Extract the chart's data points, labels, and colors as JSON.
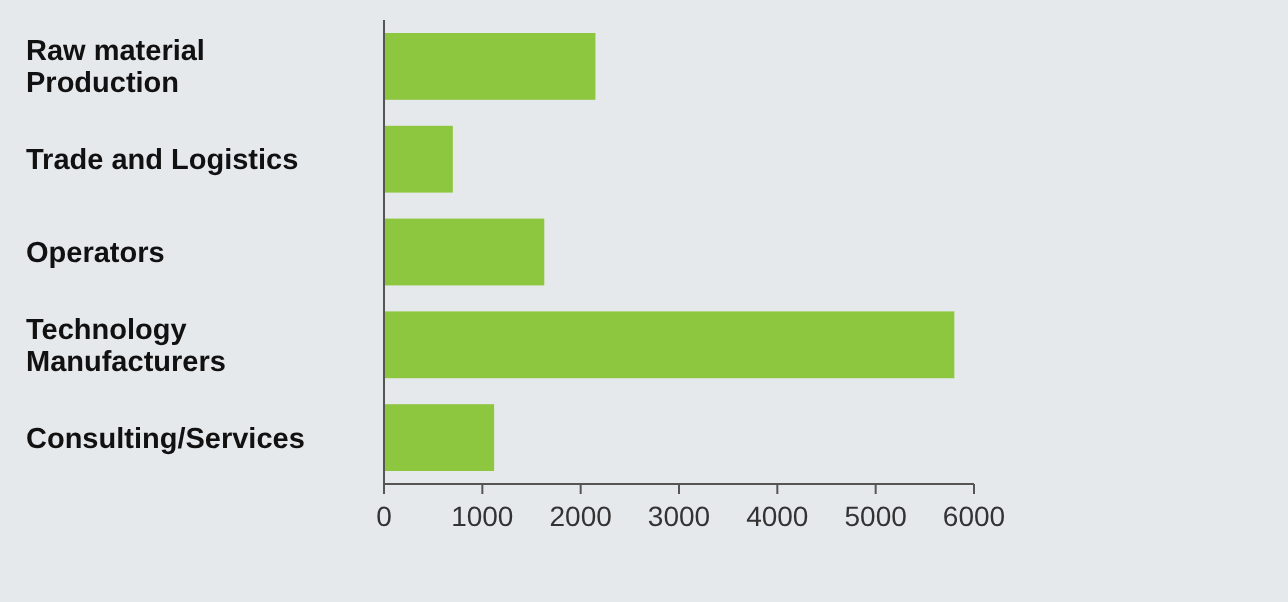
{
  "chart_data": {
    "type": "bar",
    "orientation": "horizontal",
    "categories": [
      "Raw material Production",
      "Trade and Logistics",
      "Operators",
      "Technology Manufacturers",
      "Consulting/Services"
    ],
    "values": [
      2150,
      700,
      1630,
      5800,
      1120
    ],
    "color": "#8dc63f",
    "xlim": [
      0,
      6000
    ],
    "xticks": [
      0,
      1000,
      2000,
      3000,
      4000,
      5000,
      6000
    ],
    "grid": false
  }
}
